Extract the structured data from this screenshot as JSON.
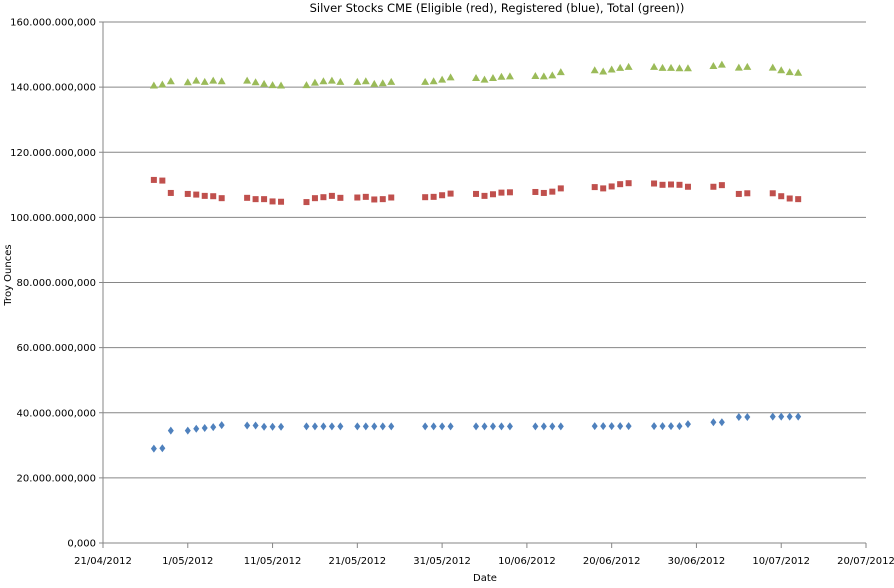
{
  "chart_data": {
    "type": "scatter",
    "title": "Silver Stocks CME (Eligible  (red), Registered (blue), Total (green))",
    "xlabel": "Date",
    "ylabel": "Troy Ounces",
    "xlim": [
      "2012-04-21",
      "2012-07-20"
    ],
    "ylim": [
      0,
      160000000000
    ],
    "grid": true,
    "x_ticks": [
      "21/04/2012",
      "1/05/2012",
      "11/05/2012",
      "21/05/2012",
      "31/05/2012",
      "10/06/2012",
      "20/06/2012",
      "30/06/2012",
      "10/07/2012",
      "20/07/2012"
    ],
    "y_ticks": [
      "0,000",
      "20.000.000,000",
      "40.000.000,000",
      "60.000.000,000",
      "80.000.000,000",
      "100.000.000,000",
      "120.000.000,000",
      "140.000.000,000",
      "160.000.000,000"
    ],
    "series": [
      {
        "color": "#9bbb59",
        "marker": "triangle",
        "points": [
          [
            "2012-04-27",
            140500000000.0
          ],
          [
            "2012-04-28",
            140800000000.0
          ],
          [
            "2012-04-29",
            141800000000.0
          ],
          [
            "2012-05-01",
            141500000000.0
          ],
          [
            "2012-05-02",
            142000000000.0
          ],
          [
            "2012-05-03",
            141600000000.0
          ],
          [
            "2012-05-04",
            142000000000.0
          ],
          [
            "2012-05-05",
            141800000000.0
          ],
          [
            "2012-05-08",
            142000000000.0
          ],
          [
            "2012-05-09",
            141500000000.0
          ],
          [
            "2012-05-10",
            141000000000.0
          ],
          [
            "2012-05-11",
            140600000000.0
          ],
          [
            "2012-05-12",
            140500000000.0
          ],
          [
            "2012-05-15",
            140600000000.0
          ],
          [
            "2012-05-16",
            141400000000.0
          ],
          [
            "2012-05-17",
            141800000000.0
          ],
          [
            "2012-05-18",
            142000000000.0
          ],
          [
            "2012-05-19",
            141600000000.0
          ],
          [
            "2012-05-21",
            141600000000.0
          ],
          [
            "2012-05-22",
            141800000000.0
          ],
          [
            "2012-05-23",
            141000000000.0
          ],
          [
            "2012-05-24",
            141200000000.0
          ],
          [
            "2012-05-25",
            141600000000.0
          ],
          [
            "2012-05-29",
            141600000000.0
          ],
          [
            "2012-05-30",
            141800000000.0
          ],
          [
            "2012-05-31",
            142300000000.0
          ],
          [
            "2012-06-01",
            143000000000.0
          ],
          [
            "2012-06-04",
            142800000000.0
          ],
          [
            "2012-06-05",
            142300000000.0
          ],
          [
            "2012-06-06",
            142800000000.0
          ],
          [
            "2012-06-07",
            143200000000.0
          ],
          [
            "2012-06-08",
            143300000000.0
          ],
          [
            "2012-06-11",
            143400000000.0
          ],
          [
            "2012-06-12",
            143300000000.0
          ],
          [
            "2012-06-13",
            143600000000.0
          ],
          [
            "2012-06-14",
            144600000000.0
          ],
          [
            "2012-06-18",
            145200000000.0
          ],
          [
            "2012-06-19",
            144800000000.0
          ],
          [
            "2012-06-20",
            145400000000.0
          ],
          [
            "2012-06-21",
            145900000000.0
          ],
          [
            "2012-06-22",
            146200000000.0
          ],
          [
            "2012-06-25",
            146200000000.0
          ],
          [
            "2012-06-26",
            145900000000.0
          ],
          [
            "2012-06-27",
            145900000000.0
          ],
          [
            "2012-06-28",
            145800000000.0
          ],
          [
            "2012-06-29",
            145800000000.0
          ],
          [
            "2012-07-02",
            146500000000.0
          ],
          [
            "2012-07-03",
            146900000000.0
          ],
          [
            "2012-07-05",
            146000000000.0
          ],
          [
            "2012-07-06",
            146200000000.0
          ],
          [
            "2012-07-09",
            146000000000.0
          ],
          [
            "2012-07-10",
            145200000000.0
          ],
          [
            "2012-07-11",
            144600000000.0
          ],
          [
            "2012-07-12",
            144400000000.0
          ]
        ]
      },
      {
        "color": "#c0504d",
        "marker": "square",
        "points": [
          [
            "2012-04-27",
            111500000000.0
          ],
          [
            "2012-04-28",
            111300000000.0
          ],
          [
            "2012-04-29",
            107500000000.0
          ],
          [
            "2012-05-01",
            107200000000.0
          ],
          [
            "2012-05-02",
            107000000000.0
          ],
          [
            "2012-05-03",
            106600000000.0
          ],
          [
            "2012-05-04",
            106500000000.0
          ],
          [
            "2012-05-05",
            105900000000.0
          ],
          [
            "2012-05-08",
            106000000000.0
          ],
          [
            "2012-05-09",
            105600000000.0
          ],
          [
            "2012-05-10",
            105600000000.0
          ],
          [
            "2012-05-11",
            104900000000.0
          ],
          [
            "2012-05-12",
            104800000000.0
          ],
          [
            "2012-05-15",
            104700000000.0
          ],
          [
            "2012-05-16",
            105900000000.0
          ],
          [
            "2012-05-17",
            106200000000.0
          ],
          [
            "2012-05-18",
            106600000000.0
          ],
          [
            "2012-05-19",
            106000000000.0
          ],
          [
            "2012-05-21",
            106100000000.0
          ],
          [
            "2012-05-22",
            106300000000.0
          ],
          [
            "2012-05-23",
            105500000000.0
          ],
          [
            "2012-05-24",
            105600000000.0
          ],
          [
            "2012-05-25",
            106100000000.0
          ],
          [
            "2012-05-29",
            106200000000.0
          ],
          [
            "2012-05-30",
            106300000000.0
          ],
          [
            "2012-05-31",
            106800000000.0
          ],
          [
            "2012-06-01",
            107300000000.0
          ],
          [
            "2012-06-04",
            107200000000.0
          ],
          [
            "2012-06-05",
            106600000000.0
          ],
          [
            "2012-06-06",
            107100000000.0
          ],
          [
            "2012-06-07",
            107600000000.0
          ],
          [
            "2012-06-08",
            107700000000.0
          ],
          [
            "2012-06-11",
            107800000000.0
          ],
          [
            "2012-06-12",
            107500000000.0
          ],
          [
            "2012-06-13",
            107900000000.0
          ],
          [
            "2012-06-14",
            108900000000.0
          ],
          [
            "2012-06-18",
            109300000000.0
          ],
          [
            "2012-06-19",
            108900000000.0
          ],
          [
            "2012-06-20",
            109500000000.0
          ],
          [
            "2012-06-21",
            110200000000.0
          ],
          [
            "2012-06-22",
            110500000000.0
          ],
          [
            "2012-06-25",
            110400000000.0
          ],
          [
            "2012-06-26",
            110000000000.0
          ],
          [
            "2012-06-27",
            110100000000.0
          ],
          [
            "2012-06-28",
            110000000000.0
          ],
          [
            "2012-06-29",
            109400000000.0
          ],
          [
            "2012-07-02",
            109400000000.0
          ],
          [
            "2012-07-03",
            109900000000.0
          ],
          [
            "2012-07-05",
            107200000000.0
          ],
          [
            "2012-07-06",
            107400000000.0
          ],
          [
            "2012-07-09",
            107400000000.0
          ],
          [
            "2012-07-10",
            106500000000.0
          ],
          [
            "2012-07-11",
            105800000000.0
          ],
          [
            "2012-07-12",
            105600000000.0
          ]
        ]
      },
      {
        "color": "#4f81bd",
        "marker": "diamond",
        "points": [
          [
            "2012-04-27",
            29000000000.0
          ],
          [
            "2012-04-28",
            29100000000.0
          ],
          [
            "2012-04-29",
            34500000000.0
          ],
          [
            "2012-05-01",
            34500000000.0
          ],
          [
            "2012-05-02",
            35100000000.0
          ],
          [
            "2012-05-03",
            35300000000.0
          ],
          [
            "2012-05-04",
            35600000000.0
          ],
          [
            "2012-05-05",
            36200000000.0
          ],
          [
            "2012-05-08",
            36100000000.0
          ],
          [
            "2012-05-09",
            36100000000.0
          ],
          [
            "2012-05-10",
            35700000000.0
          ],
          [
            "2012-05-11",
            35700000000.0
          ],
          [
            "2012-05-12",
            35700000000.0
          ],
          [
            "2012-05-15",
            35800000000.0
          ],
          [
            "2012-05-16",
            35800000000.0
          ],
          [
            "2012-05-17",
            35800000000.0
          ],
          [
            "2012-05-18",
            35800000000.0
          ],
          [
            "2012-05-19",
            35800000000.0
          ],
          [
            "2012-05-21",
            35800000000.0
          ],
          [
            "2012-05-22",
            35800000000.0
          ],
          [
            "2012-05-23",
            35800000000.0
          ],
          [
            "2012-05-24",
            35800000000.0
          ],
          [
            "2012-05-25",
            35800000000.0
          ],
          [
            "2012-05-29",
            35800000000.0
          ],
          [
            "2012-05-30",
            35800000000.0
          ],
          [
            "2012-05-31",
            35800000000.0
          ],
          [
            "2012-06-01",
            35800000000.0
          ],
          [
            "2012-06-04",
            35800000000.0
          ],
          [
            "2012-06-05",
            35800000000.0
          ],
          [
            "2012-06-06",
            35800000000.0
          ],
          [
            "2012-06-07",
            35800000000.0
          ],
          [
            "2012-06-08",
            35800000000.0
          ],
          [
            "2012-06-11",
            35800000000.0
          ],
          [
            "2012-06-12",
            35800000000.0
          ],
          [
            "2012-06-13",
            35800000000.0
          ],
          [
            "2012-06-14",
            35800000000.0
          ],
          [
            "2012-06-18",
            35900000000.0
          ],
          [
            "2012-06-19",
            35900000000.0
          ],
          [
            "2012-06-20",
            35900000000.0
          ],
          [
            "2012-06-21",
            35900000000.0
          ],
          [
            "2012-06-22",
            35900000000.0
          ],
          [
            "2012-06-25",
            35900000000.0
          ],
          [
            "2012-06-26",
            35900000000.0
          ],
          [
            "2012-06-27",
            35900000000.0
          ],
          [
            "2012-06-28",
            35900000000.0
          ],
          [
            "2012-06-29",
            36500000000.0
          ],
          [
            "2012-07-02",
            37100000000.0
          ],
          [
            "2012-07-03",
            37100000000.0
          ],
          [
            "2012-07-05",
            38700000000.0
          ],
          [
            "2012-07-06",
            38700000000.0
          ],
          [
            "2012-07-09",
            38800000000.0
          ],
          [
            "2012-07-10",
            38800000000.0
          ],
          [
            "2012-07-11",
            38800000000.0
          ],
          [
            "2012-07-12",
            38800000000.0
          ]
        ]
      }
    ]
  }
}
